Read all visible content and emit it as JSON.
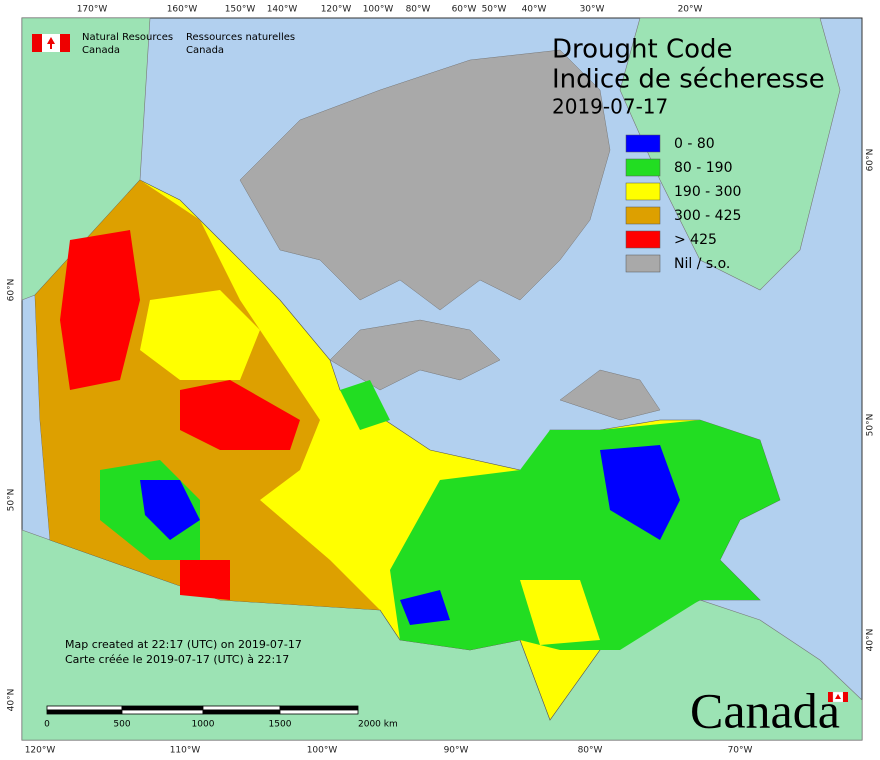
{
  "header": {
    "org_en": [
      "Natural Resources",
      "Canada"
    ],
    "org_fr": [
      "Ressources naturelles",
      "Canada"
    ]
  },
  "title": [
    "Drought Code",
    "Indice de sécheresse"
  ],
  "date": "2019-07-17",
  "legend": [
    {
      "label": "0 - 80",
      "color": "#0000ff"
    },
    {
      "label": "80 - 190",
      "color": "#22dd22"
    },
    {
      "label": "190 - 300",
      "color": "#ffff00"
    },
    {
      "label": "300 - 425",
      "color": "#dda000"
    },
    {
      "label": "> 425",
      "color": "#ff0000"
    },
    {
      "label": "Nil / s.o.",
      "color": "#a9a9a9"
    }
  ],
  "credits": [
    "Map created at 22:17 (UTC) on 2019-07-17",
    "Carte créée le 2019-07-17 (UTC) à 22:17"
  ],
  "scale_bar": [
    "0",
    "500",
    "1000",
    "1500",
    "2000  km"
  ],
  "graticule": {
    "top": [
      "170°W",
      "160°W",
      "150°W",
      "140°W",
      "120°W",
      "100°W",
      "80°W",
      "60°W",
      "50°W",
      "40°W",
      "30°W",
      "20°W"
    ],
    "bottom": [
      "120°W",
      "110°W",
      "100°W",
      "90°W",
      "80°W",
      "70°W"
    ],
    "left": [
      "60°N",
      "50°N",
      "40°N"
    ],
    "right": [
      "60°N",
      "50°N",
      "40°N"
    ]
  },
  "wordmark": "Canada"
}
